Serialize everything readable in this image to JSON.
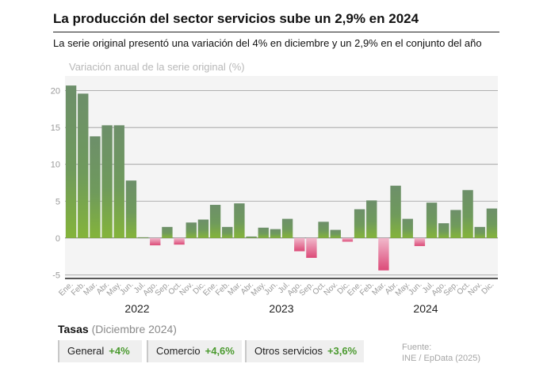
{
  "header": {
    "title": "La producción del sector servicios sube un 2,9% en 2024",
    "subtitle": "La serie original presentó una variación del 4% en diciembre y un 2,9% en el conjunto del año"
  },
  "chart_data": {
    "type": "bar",
    "title": "Variación anual de la serie original (%)",
    "ylim": [
      -5.5,
      22
    ],
    "yticks": [
      -5,
      0,
      5,
      10,
      15,
      20
    ],
    "categories": [
      "Ene.",
      "Feb.",
      "Mar.",
      "Abr.",
      "May.",
      "Jun.",
      "Jul.",
      "Ago.",
      "Sep.",
      "Oct.",
      "Nov.",
      "Dic.",
      "Ene.",
      "Feb.",
      "Mar.",
      "Abr.",
      "May.",
      "Jun.",
      "Jul.",
      "Ago.",
      "Sep.",
      "Oct.",
      "Nov.",
      "Dic.",
      "Ene.",
      "Feb.",
      "Mar.",
      "Abr.",
      "May.",
      "Jun.",
      "Jul.",
      "Ago.",
      "Sep.",
      "Oct.",
      "Nov.",
      "Dic."
    ],
    "years": [
      "2022",
      "2023",
      "2024"
    ],
    "values": [
      20.7,
      19.6,
      13.8,
      15.3,
      15.3,
      7.8,
      0.1,
      -1.0,
      1.5,
      -0.9,
      2.1,
      2.5,
      4.5,
      1.5,
      4.7,
      0.2,
      1.4,
      1.2,
      2.6,
      -1.8,
      -2.7,
      2.2,
      1.1,
      -0.5,
      3.9,
      5.1,
      -4.4,
      7.1,
      2.6,
      -1.1,
      4.8,
      2.0,
      3.8,
      6.5,
      1.5,
      4.0
    ],
    "positive_color": "#6d8f6a",
    "positive_base_color": "#7fb23a",
    "negative_color": "#e0527f"
  },
  "tasas": {
    "title": "Tasas",
    "period": "(Diciembre 2024)",
    "items": [
      {
        "label": "General",
        "value": "+4%"
      },
      {
        "label": "Comercio",
        "value": "+4,6%"
      },
      {
        "label": "Otros servicios",
        "value": "+3,6%"
      }
    ]
  },
  "source": {
    "line1": "Fuente:",
    "line2": "INE / EpData (2025)"
  }
}
